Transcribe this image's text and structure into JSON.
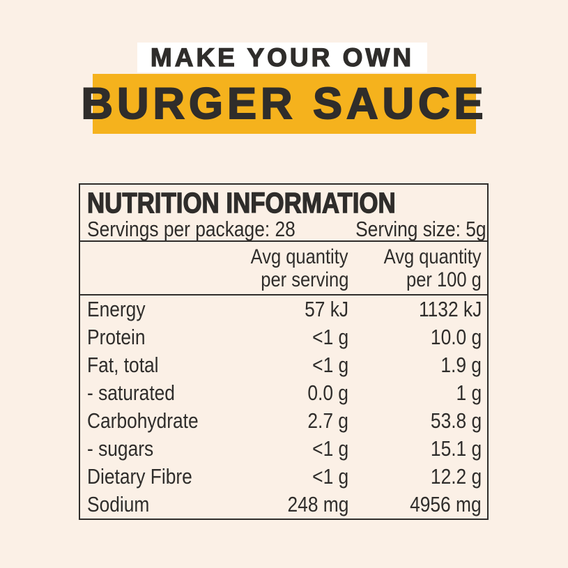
{
  "poster": {
    "background_color": "#FBF0E6",
    "accent_yellow": "#F5B21D",
    "ink_color": "#2F2D2B",
    "headline": {
      "top": "MAKE YOUR OWN",
      "main": "BURGER SAUCE"
    }
  },
  "table": {
    "title": "NUTRITION INFORMATION",
    "servings_per_package": "Servings per package: 28",
    "serving_size": "Serving size: 5g",
    "columns": {
      "serving_line1": "Avg quantity",
      "serving_line2": "per serving",
      "per100_line1": "Avg quantity",
      "per100_line2": "per 100 g"
    },
    "rows": [
      {
        "name": "Energy",
        "per_serving": "57 kJ",
        "per_100g": "1132 kJ"
      },
      {
        "name": "Protein",
        "per_serving": "<1 g",
        "per_100g": "10.0 g"
      },
      {
        "name": "Fat, total",
        "per_serving": "<1 g",
        "per_100g": "1.9 g"
      },
      {
        "name": "- saturated",
        "per_serving": "0.0 g",
        "per_100g": "1 g"
      },
      {
        "name": "Carbohydrate",
        "per_serving": "2.7 g",
        "per_100g": "53.8 g"
      },
      {
        "name": "- sugars",
        "per_serving": "<1 g",
        "per_100g": "15.1 g"
      },
      {
        "name": "Dietary Fibre",
        "per_serving": "<1 g",
        "per_100g": "12.2 g"
      },
      {
        "name": "Sodium",
        "per_serving": "248 mg",
        "per_100g": "4956 mg"
      }
    ]
  }
}
